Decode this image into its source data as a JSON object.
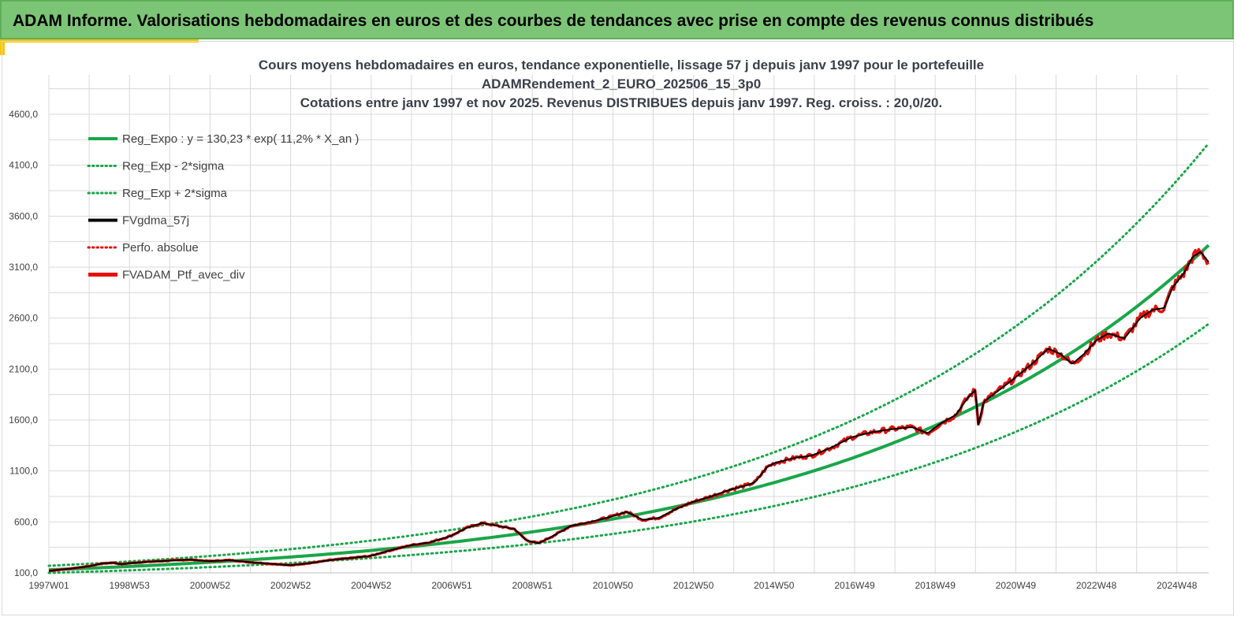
{
  "banner": {
    "title": "ADAM Informe. Valorisations hebdomadaires en euros et des courbes de tendances avec prise en compte des revenus connus distribués"
  },
  "colors": {
    "banner_bg": "#7cc576",
    "trend": "#1aa64a",
    "smoothed": "#000000",
    "portfolio": "#e3120b",
    "grid": "#d9d9d9"
  },
  "chart_data": {
    "type": "line",
    "title_lines": [
      "Cours moyens hebdomadaires  en euros, tendance exponentielle, lissage 57 j depuis janv 1997 pour le portefeuille",
      "ADAMRendement_2_EURO_202506_15_3p0",
      "Cotations  entre janv 1997 et nov 2025. Revenus DISTRIBUES depuis janv 1997. Reg. croiss. : 20,0/20."
    ],
    "x_ticks": [
      "1997W01",
      "1998W53",
      "2000W52",
      "2002W52",
      "2004W52",
      "2006W51",
      "2008W51",
      "2010W50",
      "2012W50",
      "2014W50",
      "2016W49",
      "2018W49",
      "2020W49",
      "2022W48",
      "2024W48"
    ],
    "y_ticks": [
      "100,0",
      "600,0",
      "1100,0",
      "1600,0",
      "2100,0",
      "2600,0",
      "3100,0",
      "3600,0",
      "4100,0",
      "4600,0"
    ],
    "xlim": [
      1997.0,
      2025.9
    ],
    "ylim": [
      100,
      4800
    ],
    "grid": true,
    "legend_placement": "top-left",
    "regression": {
      "a": 130.23,
      "rate": 0.112,
      "sigma_factor_low": 0.767,
      "sigma_factor_high": 1.302
    },
    "series": [
      {
        "name": "Reg_Expo : y = 130,23 * exp( 11,2% *  X_an )",
        "style": "solid",
        "color": "#1aa64a",
        "kind": "trend"
      },
      {
        "name": "Reg_Exp - 2*sigma",
        "style": "dotted",
        "color": "#1aa64a",
        "kind": "trend_low"
      },
      {
        "name": "Reg_Exp + 2*sigma",
        "style": "dotted",
        "color": "#1aa64a",
        "kind": "trend_high"
      },
      {
        "name": "FVgdma_57j",
        "style": "solid",
        "color": "#000000",
        "kind": "smoothed"
      },
      {
        "name": "Perfo. absolue",
        "style": "dotted",
        "color": "#e3120b",
        "kind": "perfo"
      },
      {
        "name": "FVADAM_Ptf_avec_div",
        "style": "solid-thick",
        "color": "#e3120b",
        "kind": "portfolio"
      }
    ],
    "portfolio_points": {
      "x": [
        1997.0,
        1997.5,
        1998.0,
        1998.3,
        1998.6,
        1998.8,
        1999.0,
        1999.5,
        2000.0,
        2000.5,
        2001.0,
        2001.5,
        2002.0,
        2002.5,
        2003.0,
        2003.5,
        2004.0,
        2004.5,
        2005.0,
        2005.5,
        2006.0,
        2006.5,
        2007.0,
        2007.4,
        2007.8,
        2008.2,
        2008.6,
        2008.9,
        2009.2,
        2009.6,
        2010.0,
        2010.5,
        2011.0,
        2011.4,
        2011.8,
        2012.2,
        2012.6,
        2013.0,
        2013.5,
        2014.0,
        2014.4,
        2014.6,
        2014.9,
        2015.1,
        2015.3,
        2015.6,
        2016.0,
        2016.5,
        2017.0,
        2017.5,
        2018.0,
        2018.5,
        2018.9,
        2019.2,
        2019.6,
        2019.9,
        2020.1,
        2020.15,
        2020.3,
        2020.6,
        2021.0,
        2021.5,
        2021.9,
        2022.2,
        2022.5,
        2022.8,
        2023.1,
        2023.4,
        2023.8,
        2024.2,
        2024.5,
        2024.8,
        2025.0,
        2025.3,
        2025.5,
        2025.7,
        2025.9
      ],
      "y": [
        120,
        140,
        165,
        190,
        200,
        185,
        195,
        210,
        220,
        230,
        215,
        225,
        205,
        190,
        175,
        195,
        225,
        245,
        265,
        320,
        370,
        400,
        460,
        540,
        590,
        560,
        530,
        420,
        390,
        470,
        560,
        600,
        650,
        700,
        620,
        640,
        720,
        790,
        850,
        920,
        960,
        990,
        1140,
        1180,
        1200,
        1230,
        1250,
        1330,
        1430,
        1480,
        1510,
        1530,
        1470,
        1560,
        1650,
        1820,
        1900,
        1540,
        1780,
        1870,
        1990,
        2150,
        2300,
        2250,
        2150,
        2250,
        2380,
        2450,
        2400,
        2600,
        2680,
        2700,
        2900,
        3050,
        3200,
        3250,
        3150
      ]
    }
  }
}
